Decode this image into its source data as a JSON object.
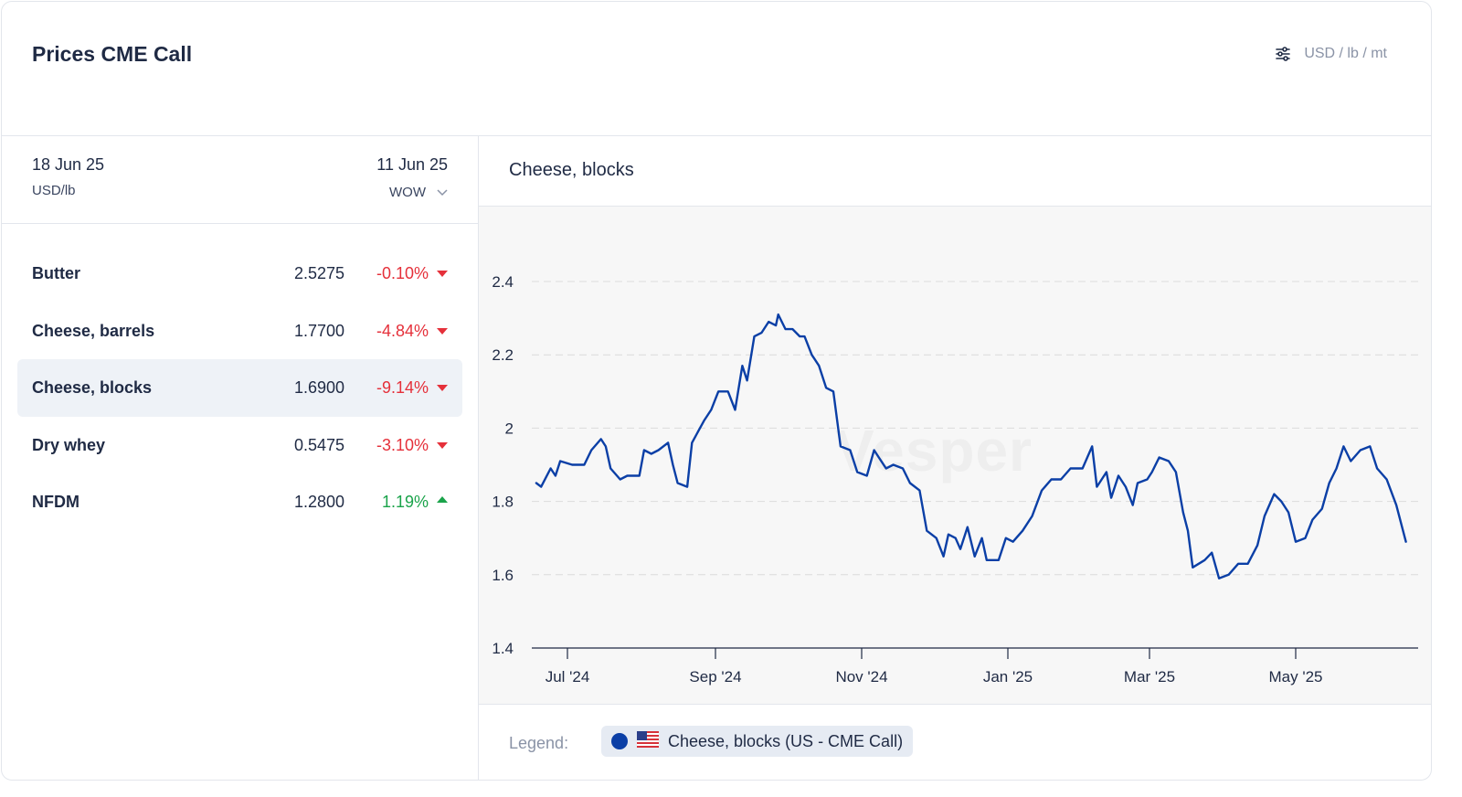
{
  "header": {
    "title": "Prices CME Call",
    "unit_selector": "USD / lb / mt",
    "unit_icon": "sliders-icon"
  },
  "panel": {
    "current_date": "18 Jun 25",
    "unit": "USD/lb",
    "compare_date": "11 Jun 25",
    "compare_mode": "WOW"
  },
  "products": [
    {
      "name": "Butter",
      "value": "2.5275",
      "change": "-0.10%",
      "direction": "down",
      "active": false
    },
    {
      "name": "Cheese, barrels",
      "value": "1.7700",
      "change": "-4.84%",
      "direction": "down",
      "active": false
    },
    {
      "name": "Cheese, blocks",
      "value": "1.6900",
      "change": "-9.14%",
      "direction": "down",
      "active": true
    },
    {
      "name": "Dry whey",
      "value": "0.5475",
      "change": "-3.10%",
      "direction": "down",
      "active": false
    },
    {
      "name": "NFDM",
      "value": "1.2800",
      "change": "1.19%",
      "direction": "up",
      "active": false
    }
  ],
  "chart": {
    "title": "Cheese, blocks",
    "watermark": "Vesper"
  },
  "legend": {
    "label": "Legend:",
    "series_label": "Cheese, blocks (US - CME Call)",
    "flag_icon": "us-flag-icon"
  },
  "colors": {
    "line": "#0b3fa6",
    "negative": "#e5303a",
    "positive": "#1aa34a"
  },
  "chart_data": {
    "type": "line",
    "title": "Cheese, blocks",
    "xlabel": "",
    "ylabel": "",
    "ylim": [
      1.4,
      2.4
    ],
    "yticks": [
      "2.4",
      "2.2",
      "2",
      "1.8",
      "1.6",
      "1.4"
    ],
    "xticks": [
      "Jul '24",
      "Sep '24",
      "Nov '24",
      "Jan '25",
      "Mar '25",
      "May '25"
    ],
    "grid": true,
    "series": [
      {
        "name": "Cheese, blocks (US - CME Call)",
        "points": [
          [
            "2024-06-18",
            1.85
          ],
          [
            "2024-06-20",
            1.84
          ],
          [
            "2024-06-24",
            1.89
          ],
          [
            "2024-06-26",
            1.87
          ],
          [
            "2024-06-28",
            1.91
          ],
          [
            "2024-07-03",
            1.9
          ],
          [
            "2024-07-08",
            1.9
          ],
          [
            "2024-07-11",
            1.94
          ],
          [
            "2024-07-15",
            1.97
          ],
          [
            "2024-07-17",
            1.95
          ],
          [
            "2024-07-19",
            1.89
          ],
          [
            "2024-07-23",
            1.86
          ],
          [
            "2024-07-26",
            1.87
          ],
          [
            "2024-07-31",
            1.87
          ],
          [
            "2024-08-02",
            1.94
          ],
          [
            "2024-08-05",
            1.93
          ],
          [
            "2024-08-08",
            1.94
          ],
          [
            "2024-08-12",
            1.96
          ],
          [
            "2024-08-14",
            1.9
          ],
          [
            "2024-08-16",
            1.85
          ],
          [
            "2024-08-20",
            1.84
          ],
          [
            "2024-08-22",
            1.96
          ],
          [
            "2024-08-27",
            2.02
          ],
          [
            "2024-08-30",
            2.05
          ],
          [
            "2024-09-02",
            2.1
          ],
          [
            "2024-09-06",
            2.1
          ],
          [
            "2024-09-09",
            2.05
          ],
          [
            "2024-09-12",
            2.17
          ],
          [
            "2024-09-14",
            2.13
          ],
          [
            "2024-09-17",
            2.25
          ],
          [
            "2024-09-20",
            2.26
          ],
          [
            "2024-09-23",
            2.29
          ],
          [
            "2024-09-26",
            2.28
          ],
          [
            "2024-09-27",
            2.31
          ],
          [
            "2024-09-30",
            2.27
          ],
          [
            "2024-10-03",
            2.27
          ],
          [
            "2024-10-06",
            2.25
          ],
          [
            "2024-10-08",
            2.25
          ],
          [
            "2024-10-11",
            2.2
          ],
          [
            "2024-10-14",
            2.17
          ],
          [
            "2024-10-17",
            2.11
          ],
          [
            "2024-10-20",
            2.1
          ],
          [
            "2024-10-23",
            1.95
          ],
          [
            "2024-10-27",
            1.94
          ],
          [
            "2024-10-30",
            1.88
          ],
          [
            "2024-11-03",
            1.87
          ],
          [
            "2024-11-06",
            1.94
          ],
          [
            "2024-11-08",
            1.92
          ],
          [
            "2024-11-11",
            1.89
          ],
          [
            "2024-11-14",
            1.9
          ],
          [
            "2024-11-18",
            1.89
          ],
          [
            "2024-11-21",
            1.85
          ],
          [
            "2024-11-25",
            1.83
          ],
          [
            "2024-11-28",
            1.72
          ],
          [
            "2024-12-02",
            1.7
          ],
          [
            "2024-12-05",
            1.65
          ],
          [
            "2024-12-07",
            1.71
          ],
          [
            "2024-12-10",
            1.7
          ],
          [
            "2024-12-12",
            1.67
          ],
          [
            "2024-12-15",
            1.73
          ],
          [
            "2024-12-18",
            1.65
          ],
          [
            "2024-12-21",
            1.7
          ],
          [
            "2024-12-23",
            1.64
          ],
          [
            "2024-12-28",
            1.64
          ],
          [
            "2024-12-31",
            1.7
          ],
          [
            "2025-01-03",
            1.69
          ],
          [
            "2025-01-07",
            1.72
          ],
          [
            "2025-01-11",
            1.76
          ],
          [
            "2025-01-15",
            1.83
          ],
          [
            "2025-01-19",
            1.86
          ],
          [
            "2025-01-23",
            1.86
          ],
          [
            "2025-01-27",
            1.89
          ],
          [
            "2025-02-01",
            1.89
          ],
          [
            "2025-02-05",
            1.95
          ],
          [
            "2025-02-07",
            1.84
          ],
          [
            "2025-02-11",
            1.88
          ],
          [
            "2025-02-13",
            1.81
          ],
          [
            "2025-02-16",
            1.87
          ],
          [
            "2025-02-19",
            1.84
          ],
          [
            "2025-02-22",
            1.79
          ],
          [
            "2025-02-24",
            1.85
          ],
          [
            "2025-02-28",
            1.86
          ],
          [
            "2025-03-02",
            1.88
          ],
          [
            "2025-03-05",
            1.92
          ],
          [
            "2025-03-09",
            1.91
          ],
          [
            "2025-03-12",
            1.88
          ],
          [
            "2025-03-15",
            1.77
          ],
          [
            "2025-03-17",
            1.72
          ],
          [
            "2025-03-19",
            1.62
          ],
          [
            "2025-03-24",
            1.64
          ],
          [
            "2025-03-27",
            1.66
          ],
          [
            "2025-03-30",
            1.59
          ],
          [
            "2025-04-03",
            1.6
          ],
          [
            "2025-04-07",
            1.63
          ],
          [
            "2025-04-11",
            1.63
          ],
          [
            "2025-04-15",
            1.68
          ],
          [
            "2025-04-18",
            1.76
          ],
          [
            "2025-04-22",
            1.82
          ],
          [
            "2025-04-25",
            1.8
          ],
          [
            "2025-04-28",
            1.77
          ],
          [
            "2025-05-01",
            1.69
          ],
          [
            "2025-05-05",
            1.7
          ],
          [
            "2025-05-08",
            1.75
          ],
          [
            "2025-05-12",
            1.78
          ],
          [
            "2025-05-15",
            1.85
          ],
          [
            "2025-05-18",
            1.89
          ],
          [
            "2025-05-21",
            1.95
          ],
          [
            "2025-05-24",
            1.91
          ],
          [
            "2025-05-28",
            1.94
          ],
          [
            "2025-06-01",
            1.95
          ],
          [
            "2025-06-04",
            1.89
          ],
          [
            "2025-06-08",
            1.86
          ],
          [
            "2025-06-12",
            1.79
          ],
          [
            "2025-06-16",
            1.69
          ]
        ]
      }
    ]
  }
}
